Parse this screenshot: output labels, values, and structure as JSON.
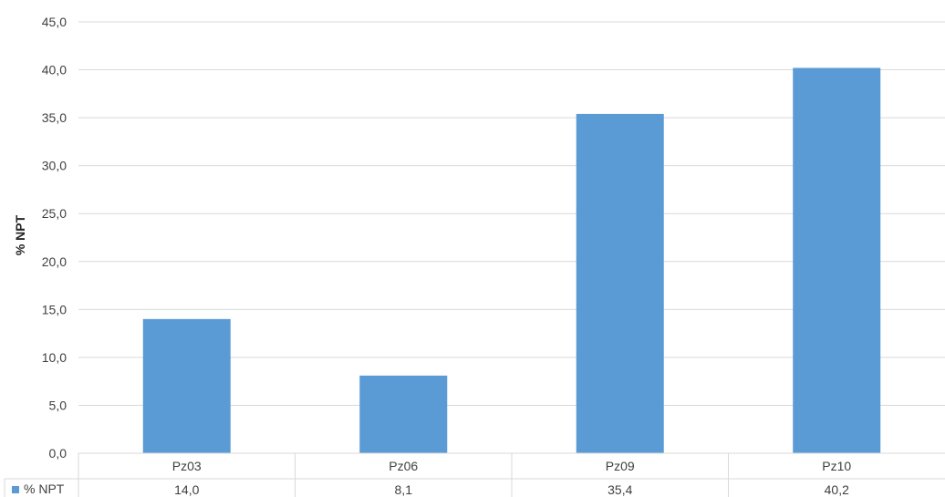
{
  "chart_data": {
    "type": "bar",
    "categories": [
      "Pz03",
      "Pz06",
      "Pz09",
      "Pz10"
    ],
    "series": [
      {
        "name": "% NPT",
        "values": [
          14.0,
          8.1,
          35.4,
          40.2
        ],
        "color": "#5B9BD5"
      }
    ],
    "value_labels": [
      "14,0",
      "8,1",
      "35,4",
      "40,2"
    ],
    "ylabel": "% NPT",
    "ylim": [
      0,
      45
    ],
    "yticks": [
      "0,0",
      "5,0",
      "10,0",
      "15,0",
      "20,0",
      "25,0",
      "30,0",
      "35,0",
      "40,0",
      "45,0"
    ],
    "grid": true,
    "legend": "data-table-left"
  }
}
